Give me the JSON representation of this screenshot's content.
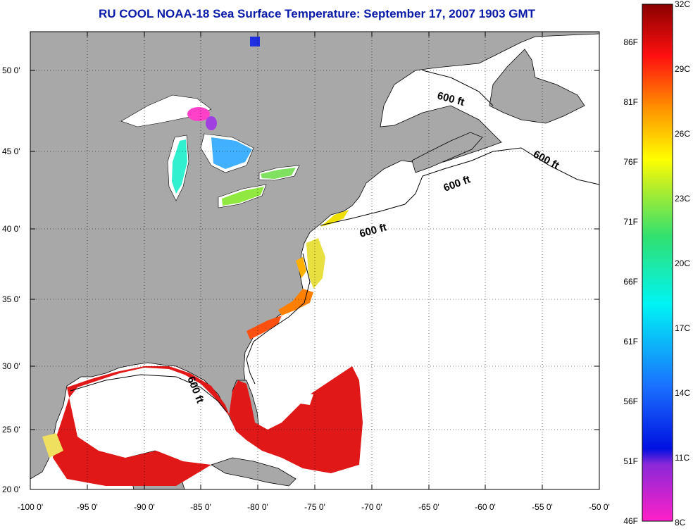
{
  "title": "RU COOL  NOAA-18  Sea Surface Temperature:  September 17, 2007 1903 GMT",
  "colors": {
    "land": "#a8a8a8",
    "ocean_nodata": "#ffffff",
    "title": "#0a1aa8"
  },
  "map": {
    "lon_range": [
      -100,
      -50
    ],
    "lat_range": [
      20,
      52.5
    ],
    "x_ticks": [
      "-100 0'",
      "-95 0'",
      "-90 0'",
      "-85 0'",
      "-80 0'",
      "-75 0'",
      "-70 0'",
      "-65 0'",
      "-60 0'",
      "-55 0'",
      "-50 0'"
    ],
    "y_ticks": [
      "50 0'",
      "45 0'",
      "40 0'",
      "35 0'",
      "30 0'",
      "25 0'",
      "20 0'"
    ],
    "contour_labels": [
      {
        "text": "600 ft"
      },
      {
        "text": "600 ft"
      },
      {
        "text": "600 ft"
      },
      {
        "text": "600 ft"
      },
      {
        "text": "600 ft"
      }
    ]
  },
  "colorbar": {
    "left_labels": [
      "86F",
      "81F",
      "76F",
      "71F",
      "66F",
      "61F",
      "56F",
      "51F",
      "46F"
    ],
    "right_labels": [
      "32C",
      "29C",
      "26C",
      "23C",
      "20C",
      "17C",
      "14C",
      "11C",
      "8C"
    ]
  }
}
